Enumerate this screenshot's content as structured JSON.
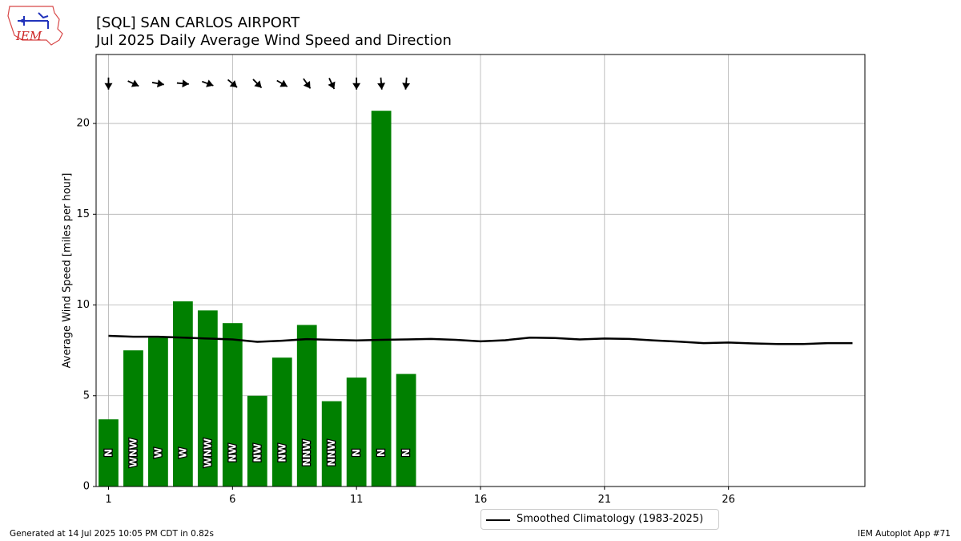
{
  "header": {
    "title_line1": "[SQL] SAN CARLOS AIRPORT",
    "title_line2": "Jul 2025 Daily Average Wind Speed and Direction"
  },
  "logo": {
    "text": "IEM",
    "color": "#cc2222"
  },
  "footer": {
    "left": "Generated at 14 Jul 2025 10:05 PM CDT in 0.82s",
    "right": "IEM Autoplot App #71"
  },
  "legend": {
    "climatology_label": "Smoothed Climatology (1983-2025)"
  },
  "chart_data": {
    "type": "bar",
    "ylabel": "Average Wind Speed [miles per hour]",
    "xlabel": "",
    "xlim": [
      0.5,
      31.5
    ],
    "ylim": [
      0,
      23.8
    ],
    "xticks": [
      1,
      6,
      11,
      16,
      21,
      26
    ],
    "yticks": [
      0,
      5,
      10,
      15,
      20
    ],
    "grid": true,
    "bar_color": "#008000",
    "line_color": "#000000",
    "days": [
      1,
      2,
      3,
      4,
      5,
      6,
      7,
      8,
      9,
      10,
      11,
      12,
      13
    ],
    "values": [
      3.7,
      7.5,
      8.2,
      10.2,
      9.7,
      9.0,
      5.0,
      7.1,
      8.9,
      4.7,
      6.0,
      20.7,
      6.2
    ],
    "directions": [
      "N",
      "WNW",
      "W",
      "W",
      "WNW",
      "NW",
      "NW",
      "NW",
      "NNW",
      "NNW",
      "N",
      "N",
      "N"
    ],
    "direction_degrees": [
      0,
      295,
      280,
      275,
      290,
      310,
      315,
      300,
      325,
      335,
      0,
      355,
      5
    ],
    "climatology": {
      "name": "Smoothed Climatology (1983-2025)",
      "x": [
        1,
        2,
        3,
        4,
        5,
        6,
        7,
        8,
        9,
        10,
        11,
        12,
        13,
        14,
        15,
        16,
        17,
        18,
        19,
        20,
        21,
        22,
        23,
        24,
        25,
        26,
        27,
        28,
        29,
        30,
        31
      ],
      "values": [
        8.3,
        8.25,
        8.25,
        8.2,
        8.15,
        8.1,
        7.97,
        8.03,
        8.12,
        8.08,
        8.05,
        8.08,
        8.1,
        8.13,
        8.08,
        8.0,
        8.06,
        8.2,
        8.18,
        8.1,
        8.15,
        8.13,
        8.05,
        7.98,
        7.9,
        7.93,
        7.88,
        7.85,
        7.85,
        7.9,
        7.9
      ]
    }
  }
}
